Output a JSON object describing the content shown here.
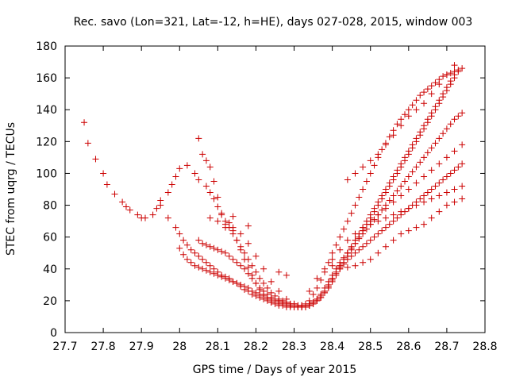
{
  "chart_data": {
    "type": "scatter",
    "title": "Rec. savo (Lon=321, Lat=-12, h=HE), days 027-028, 2015, window 003",
    "xlabel": "GPS time / Days of year 2015",
    "ylabel": "STEC from uqrg / TECUs",
    "xlim": [
      27.7,
      28.8
    ],
    "ylim": [
      0,
      180
    ],
    "xticks": [
      "27.7",
      "27.8",
      "27.9",
      "28",
      "28.1",
      "28.2",
      "28.3",
      "28.4",
      "28.5",
      "28.6",
      "28.7",
      "28.8"
    ],
    "yticks": [
      "0",
      "20",
      "40",
      "60",
      "80",
      "100",
      "120",
      "140",
      "160",
      "180"
    ],
    "grid": false,
    "marker": "plus",
    "color": "#cc0000",
    "series": [
      {
        "x": [
          27.75,
          27.76,
          27.78,
          27.8,
          27.81,
          27.83,
          27.85,
          27.86,
          27.87,
          27.89,
          27.9,
          27.91,
          27.93,
          27.94,
          27.95,
          27.97,
          27.98,
          27.99,
          28.0,
          28.02,
          28.04,
          28.05,
          28.07,
          28.08,
          28.09,
          28.1,
          28.11,
          28.13,
          28.14,
          28.15,
          28.16,
          28.17,
          28.18,
          28.19,
          28.2,
          28.21,
          28.22,
          28.23,
          28.24,
          28.25,
          28.26,
          28.27,
          28.28,
          28.29,
          28.3,
          28.31,
          28.32,
          28.33,
          28.34,
          28.35,
          28.36,
          28.37,
          28.38,
          28.39,
          28.4,
          28.41,
          28.42,
          28.43,
          28.44,
          28.45,
          28.46,
          28.47,
          28.48,
          28.49,
          28.5,
          28.51,
          28.52,
          28.53,
          28.54,
          28.55,
          28.56,
          28.57,
          28.58,
          28.59,
          28.6,
          28.61,
          28.62,
          28.63,
          28.64,
          28.65,
          28.66,
          28.67,
          28.68,
          28.69,
          28.7,
          28.71,
          28.72,
          28.73,
          28.74
        ],
        "y": [
          132,
          119,
          109,
          100,
          93,
          87,
          82,
          79,
          77,
          74,
          72,
          72,
          74,
          78,
          83,
          88,
          93,
          98,
          103,
          105,
          100,
          96,
          92,
          88,
          84,
          79,
          74,
          69,
          64,
          58,
          52,
          46,
          41,
          36,
          31,
          27,
          24,
          21,
          19,
          18,
          17,
          17,
          16,
          16,
          16,
          16,
          17,
          18,
          20,
          24,
          28,
          33,
          38,
          44,
          50,
          55,
          60,
          65,
          70,
          75,
          80,
          85,
          90,
          95,
          100,
          105,
          110,
          115,
          119,
          123,
          127,
          131,
          134,
          137,
          140,
          143,
          146,
          149,
          151,
          153,
          155,
          157,
          159,
          161,
          162,
          163,
          164,
          165,
          166
        ]
      },
      {
        "x": [
          27.95,
          27.97,
          27.99,
          28.0,
          28.01,
          28.02,
          28.03,
          28.04,
          28.05,
          28.06,
          28.07,
          28.08,
          28.09,
          28.1,
          28.11,
          28.12,
          28.13,
          28.14,
          28.15,
          28.16,
          28.17,
          28.18,
          28.19,
          28.2,
          28.21,
          28.22,
          28.23,
          28.24,
          28.25,
          28.26,
          28.27,
          28.28,
          28.29,
          28.3,
          28.31,
          28.32,
          28.33,
          28.34,
          28.35,
          28.36,
          28.37,
          28.38,
          28.39,
          28.4,
          28.41,
          28.42,
          28.43,
          28.44,
          28.45,
          28.46,
          28.47,
          28.48,
          28.49,
          28.5,
          28.51,
          28.52,
          28.53,
          28.54,
          28.55,
          28.56,
          28.57,
          28.58,
          28.59,
          28.6,
          28.61,
          28.62,
          28.63,
          28.64,
          28.65,
          28.66,
          28.67,
          28.68,
          28.69,
          28.7,
          28.71,
          28.72,
          28.73,
          28.74
        ],
        "y": [
          80,
          72,
          66,
          62,
          58,
          55,
          52,
          50,
          48,
          46,
          44,
          42,
          40,
          38,
          36,
          35,
          34,
          32,
          31,
          29,
          27,
          26,
          24,
          23,
          22,
          21,
          20,
          19,
          19,
          18,
          18,
          17,
          17,
          16,
          16,
          16,
          16,
          17,
          18,
          20,
          22,
          25,
          29,
          33,
          37,
          40,
          43,
          46,
          48,
          50,
          52,
          54,
          56,
          58,
          60,
          62,
          64,
          66,
          68,
          70,
          72,
          74,
          76,
          78,
          80,
          82,
          84,
          86,
          88,
          90,
          92,
          94,
          96,
          98,
          100,
          102,
          104,
          106
        ]
      },
      {
        "x": [
          28.0,
          28.01,
          28.02,
          28.03,
          28.04,
          28.05,
          28.06,
          28.07,
          28.08,
          28.09,
          28.1,
          28.11,
          28.12,
          28.13,
          28.14,
          28.15,
          28.16,
          28.17,
          28.18,
          28.19,
          28.2,
          28.21,
          28.22,
          28.23,
          28.24,
          28.25,
          28.26,
          28.27,
          28.28,
          28.29,
          28.3,
          28.31,
          28.32,
          28.33,
          28.34,
          28.35,
          28.36,
          28.37,
          28.38,
          28.39,
          28.4,
          28.41,
          28.42,
          28.43,
          28.44,
          28.45,
          28.46,
          28.47,
          28.48,
          28.49,
          28.5,
          28.51,
          28.52,
          28.53,
          28.54,
          28.55,
          28.56,
          28.57,
          28.58,
          28.59,
          28.6,
          28.61,
          28.62,
          28.63,
          28.64,
          28.65,
          28.66,
          28.67,
          28.68,
          28.69,
          28.7,
          28.71,
          28.72,
          28.73,
          28.74
        ],
        "y": [
          53,
          49,
          46,
          44,
          42,
          41,
          40,
          39,
          38,
          37,
          36,
          35,
          34,
          33,
          32,
          31,
          30,
          29,
          28,
          26,
          25,
          24,
          23,
          22,
          21,
          20,
          20,
          19,
          19,
          18,
          18,
          17,
          17,
          17,
          18,
          19,
          21,
          24,
          28,
          32,
          36,
          40,
          44,
          47,
          50,
          53,
          56,
          59,
          62,
          65,
          68,
          71,
          74,
          77,
          80,
          83,
          86,
          89,
          92,
          95,
          98,
          101,
          104,
          107,
          110,
          113,
          116,
          119,
          122,
          125,
          128,
          131,
          134,
          136,
          138
        ]
      },
      {
        "x": [
          28.05,
          28.06,
          28.07,
          28.08,
          28.09,
          28.1,
          28.11,
          28.12,
          28.13,
          28.14,
          28.15,
          28.16,
          28.17,
          28.18,
          28.19,
          28.2,
          28.21,
          28.22,
          28.23,
          28.24,
          28.25,
          28.26,
          28.27,
          28.28,
          28.29,
          28.3,
          28.31,
          28.32,
          28.33,
          28.34,
          28.35,
          28.36,
          28.37,
          28.38,
          28.39,
          28.4,
          28.41,
          28.42,
          28.43,
          28.44,
          28.45,
          28.46,
          28.47,
          28.48,
          28.49,
          28.5,
          28.51,
          28.52,
          28.53,
          28.54,
          28.55,
          28.56,
          28.57,
          28.58,
          28.59,
          28.6,
          28.61,
          28.62,
          28.63,
          28.64,
          28.65,
          28.66,
          28.67,
          28.68,
          28.69,
          28.7,
          28.71,
          28.72
        ],
        "y": [
          122,
          112,
          108,
          104,
          95,
          85,
          75,
          70,
          66,
          62,
          58,
          54,
          50,
          46,
          42,
          38,
          34,
          31,
          28,
          25,
          23,
          21,
          20,
          19,
          18,
          18,
          17,
          17,
          17,
          18,
          19,
          21,
          23,
          26,
          30,
          34,
          38,
          42,
          46,
          50,
          54,
          58,
          62,
          66,
          70,
          74,
          78,
          82,
          86,
          90,
          94,
          98,
          102,
          106,
          110,
          114,
          118,
          122,
          126,
          130,
          134,
          138,
          142,
          146,
          150,
          154,
          158,
          162
        ]
      },
      {
        "x": [
          28.05,
          28.06,
          28.07,
          28.08,
          28.09,
          28.1,
          28.11,
          28.12,
          28.13,
          28.14,
          28.15,
          28.16,
          28.17,
          28.18,
          28.19,
          28.2,
          28.21,
          28.22,
          28.23,
          28.24,
          28.25,
          28.26,
          28.27,
          28.28,
          28.29,
          28.3,
          28.31,
          28.32,
          28.33,
          28.34,
          28.35,
          28.36,
          28.37,
          28.38,
          28.39,
          28.4,
          28.41,
          28.42,
          28.43,
          28.44,
          28.45,
          28.46,
          28.47,
          28.48,
          28.49,
          28.5,
          28.51,
          28.52,
          28.53,
          28.54,
          28.55,
          28.56,
          28.57,
          28.58,
          28.59,
          28.6,
          28.61,
          28.62,
          28.63,
          28.64,
          28.65,
          28.66,
          28.67,
          28.68,
          28.69,
          28.7,
          28.71,
          28.72,
          28.73
        ],
        "y": [
          58,
          56,
          55,
          54,
          53,
          52,
          51,
          50,
          48,
          46,
          44,
          42,
          40,
          37,
          34,
          31,
          28,
          26,
          24,
          22,
          21,
          20,
          19,
          18,
          17,
          16,
          16,
          16,
          16,
          17,
          18,
          20,
          22,
          25,
          28,
          32,
          36,
          40,
          44,
          48,
          52,
          56,
          60,
          64,
          68,
          72,
          76,
          80,
          84,
          88,
          92,
          96,
          100,
          104,
          108,
          112,
          116,
          120,
          124,
          128,
          132,
          136,
          140,
          144,
          148,
          152,
          156,
          160,
          164
        ]
      },
      {
        "x": [
          28.08,
          28.1,
          28.12,
          28.14,
          28.16,
          28.18,
          28.2,
          28.22,
          28.24,
          28.26,
          28.28,
          28.3,
          28.32,
          28.34,
          28.36,
          28.38,
          28.4,
          28.42,
          28.44,
          28.46,
          28.48,
          28.5,
          28.52,
          28.54,
          28.56,
          28.58,
          28.6,
          28.62,
          28.64,
          28.66,
          28.68,
          28.7,
          28.72,
          28.74
        ],
        "y": [
          72,
          70,
          68,
          66,
          62,
          56,
          48,
          40,
          32,
          26,
          21,
          18,
          16,
          17,
          20,
          26,
          34,
          42,
          50,
          58,
          64,
          68,
          70,
          72,
          74,
          76,
          78,
          80,
          82,
          84,
          86,
          88,
          90,
          92
        ]
      },
      {
        "x": [
          28.34,
          28.36,
          28.38,
          28.4,
          28.42,
          28.44,
          28.46,
          28.48,
          28.5,
          28.52,
          28.54,
          28.56,
          28.58,
          28.6,
          28.62,
          28.64,
          28.66,
          28.68,
          28.7,
          28.72,
          28.74
        ],
        "y": [
          26,
          34,
          40,
          46,
          52,
          58,
          62,
          66,
          70,
          74,
          78,
          82,
          86,
          90,
          94,
          98,
          102,
          106,
          110,
          114,
          118
        ]
      },
      {
        "x": [
          28.4,
          28.42,
          28.44,
          28.46,
          28.48,
          28.5,
          28.52,
          28.54,
          28.56,
          28.58,
          28.6,
          28.62,
          28.64,
          28.66,
          28.68,
          28.7,
          28.72,
          28.74
        ],
        "y": [
          42,
          41,
          41,
          42,
          44,
          46,
          50,
          54,
          58,
          62,
          64,
          66,
          68,
          72,
          76,
          80,
          82,
          84
        ]
      },
      {
        "x": [
          28.44,
          28.46,
          28.48,
          28.5,
          28.52,
          28.54,
          28.56,
          28.58,
          28.6,
          28.62,
          28.64,
          28.66,
          28.68,
          28.7,
          28.72
        ],
        "y": [
          96,
          100,
          104,
          108,
          112,
          118,
          124,
          130,
          136,
          140,
          144,
          150,
          156,
          162,
          168
        ]
      },
      {
        "x": [
          28.26,
          28.28,
          28.18,
          28.14,
          28.12
        ],
        "y": [
          38,
          36,
          67,
          73,
          66
        ]
      }
    ]
  }
}
